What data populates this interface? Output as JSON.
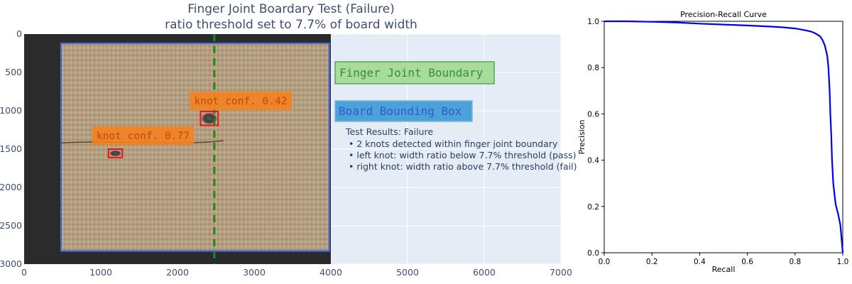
{
  "colors": {
    "plot_bg": "#e5ecf6",
    "grid": "#ffffff",
    "board_box": "#4169e1",
    "finger_joint_line": "#1a8a1a",
    "knot_box": "#e8141e",
    "knot_label_bg": "#f5821f",
    "knot_label_text": "#c44612",
    "legend_finger_bg": "#a6dc9c",
    "legend_finger_text": "#3c8c3c",
    "legend_board_bg": "#4aa3d6",
    "legend_board_text": "#3a52d8",
    "pr_curve": "#0000ee",
    "image_wood": "#b7a183",
    "image_dark_bg": "#2b2b2b"
  },
  "chart_data": [
    {
      "type": "image",
      "title": "Finger Joint Boardary Test (Failure)",
      "subtitle": "ratio threshold set to 7.7% of board width",
      "xlim": [
        0,
        7000
      ],
      "ylim": [
        3000,
        0
      ],
      "y_reversed": true,
      "x_ticks": [
        0,
        1000,
        2000,
        3000,
        4000,
        5000,
        6000,
        7000
      ],
      "y_ticks": [
        0,
        500,
        1000,
        1500,
        2000,
        2500,
        3000
      ],
      "image_extent": {
        "x": [
          0,
          4000
        ],
        "y": [
          0,
          3000
        ]
      },
      "board_bounding_box": {
        "x0": 480,
        "y0": 120,
        "x1": 3980,
        "y1": 2830
      },
      "finger_joint_boundary_x": 2480,
      "knots": [
        {
          "label": "knot conf. 0.42",
          "box": {
            "x0": 2300,
            "y0": 1010,
            "x1": 2530,
            "y1": 1190
          }
        },
        {
          "label": "knot conf. 0.77",
          "box": {
            "x0": 1100,
            "y0": 1500,
            "x1": 1280,
            "y1": 1610
          }
        }
      ],
      "legend": [
        {
          "label": "Finger Joint Boundary"
        },
        {
          "label": "Board Bounding Box"
        }
      ],
      "results": {
        "heading": "Test Results: Failure",
        "lines": [
          "• 2 knots detected within finger joint boundary",
          "• left knot: width ratio below 7.7% threshold (pass)",
          "• right knot: width ratio above 7.7% threshold (fail)"
        ]
      }
    },
    {
      "type": "line",
      "title": "Precision-Recall Curve",
      "xlabel": "Recall",
      "ylabel": "Precision",
      "xlim": [
        0,
        1
      ],
      "ylim": [
        0,
        1
      ],
      "x_ticks": [
        "0.0",
        "0.2",
        "0.4",
        "0.6",
        "0.8",
        "1.0"
      ],
      "y_ticks": [
        "0.0",
        "0.2",
        "0.4",
        "0.6",
        "0.8",
        "1.0"
      ],
      "series": [
        {
          "x": [
            0.0,
            0.1,
            0.2,
            0.3,
            0.4,
            0.5,
            0.6,
            0.7,
            0.75,
            0.8,
            0.84,
            0.87,
            0.89,
            0.905,
            0.915,
            0.925,
            0.935,
            0.94,
            0.945,
            0.948,
            0.952,
            0.955,
            0.96,
            0.97,
            0.98,
            0.99,
            1.0
          ],
          "y": [
            1.0,
            1.0,
            0.998,
            0.995,
            0.99,
            0.986,
            0.982,
            0.977,
            0.974,
            0.969,
            0.962,
            0.955,
            0.945,
            0.935,
            0.92,
            0.895,
            0.85,
            0.8,
            0.7,
            0.6,
            0.5,
            0.4,
            0.3,
            0.21,
            0.17,
            0.12,
            0.0
          ]
        }
      ]
    }
  ]
}
